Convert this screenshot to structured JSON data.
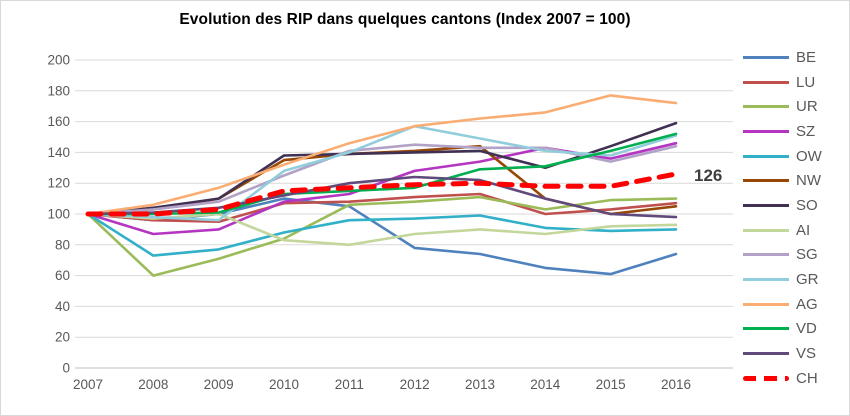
{
  "title": "Evolution des RIP dans quelques cantons (Index 2007 = 100)",
  "annotation": {
    "label": "126",
    "series": "CH",
    "year": "2016"
  },
  "colors": {
    "background": "#FFFFFF",
    "frame_border": "#D9D9D9",
    "gridline": "#D9D9D9",
    "axis_line": "#BFBFBF",
    "tick_text": "#595959",
    "legend_text": "#595959",
    "title_text": "#000000",
    "annotation_text": "#3F3F3F",
    "ch_accent": "#FF0000"
  },
  "axes": {
    "y_ticks": [
      "200",
      "180",
      "160",
      "140",
      "120",
      "100",
      "80",
      "60",
      "40",
      "20",
      "0"
    ],
    "x_ticks": [
      "2007",
      "2008",
      "2009",
      "2010",
      "2011",
      "2012",
      "2013",
      "2014",
      "2015",
      "2016"
    ]
  },
  "chart_data": {
    "type": "line",
    "title": "Evolution des RIP dans quelques cantons (Index 2007 = 100)",
    "x": [
      2007,
      2008,
      2009,
      2010,
      2011,
      2012,
      2013,
      2014,
      2015,
      2016
    ],
    "ylim": [
      0,
      200
    ],
    "ytick_step": 20,
    "grid": "horizontal",
    "legend_position": "right",
    "annotations": [
      {
        "text": "126",
        "series": "CH",
        "x": 2016,
        "y": 126
      }
    ],
    "series": [
      {
        "name": "BE",
        "color": "#4F81BD",
        "values": [
          100,
          96,
          100,
          110,
          105,
          78,
          74,
          65,
          61,
          74
        ]
      },
      {
        "name": "LU",
        "color": "#C0504D",
        "values": [
          100,
          96,
          95,
          107,
          108,
          111,
          113,
          100,
          103,
          107
        ]
      },
      {
        "name": "UR",
        "color": "#9BBB59",
        "values": [
          100,
          60,
          71,
          84,
          106,
          108,
          111,
          103,
          109,
          110
        ]
      },
      {
        "name": "SZ",
        "color": "#B435C1",
        "values": [
          100,
          87,
          90,
          108,
          113,
          128,
          134,
          143,
          136,
          146
        ]
      },
      {
        "name": "OW",
        "color": "#31B0C7",
        "values": [
          100,
          73,
          77,
          88,
          96,
          97,
          99,
          91,
          89,
          90
        ]
      },
      {
        "name": "NW",
        "color": "#974807",
        "values": [
          100,
          103,
          110,
          135,
          139,
          141,
          144,
          110,
          100,
          105
        ]
      },
      {
        "name": "SO",
        "color": "#403152",
        "values": [
          100,
          104,
          110,
          138,
          139,
          140,
          141,
          130,
          144,
          159
        ]
      },
      {
        "name": "AI",
        "color": "#C3D69B",
        "values": [
          100,
          97,
          100,
          83,
          80,
          87,
          90,
          87,
          92,
          93
        ]
      },
      {
        "name": "SG",
        "color": "#B2A2C7",
        "values": [
          100,
          103,
          108,
          125,
          141,
          145,
          143,
          143,
          134,
          144
        ]
      },
      {
        "name": "GR",
        "color": "#92CDDC",
        "values": [
          100,
          98,
          96,
          128,
          140,
          157,
          149,
          141,
          138,
          151
        ]
      },
      {
        "name": "AG",
        "color": "#FAAD72",
        "values": [
          100,
          106,
          117,
          132,
          146,
          157,
          162,
          166,
          177,
          172
        ]
      },
      {
        "name": "VD",
        "color": "#00B050",
        "values": [
          100,
          100,
          101,
          113,
          115,
          117,
          129,
          131,
          141,
          152
        ]
      },
      {
        "name": "VS",
        "color": "#604A7B",
        "values": [
          100,
          101,
          104,
          112,
          120,
          124,
          122,
          110,
          100,
          98
        ]
      },
      {
        "name": "CH",
        "color": "#FF0000",
        "dashed": true,
        "values": [
          100,
          100,
          103,
          115,
          117,
          119,
          120,
          118,
          118,
          126
        ]
      }
    ]
  }
}
